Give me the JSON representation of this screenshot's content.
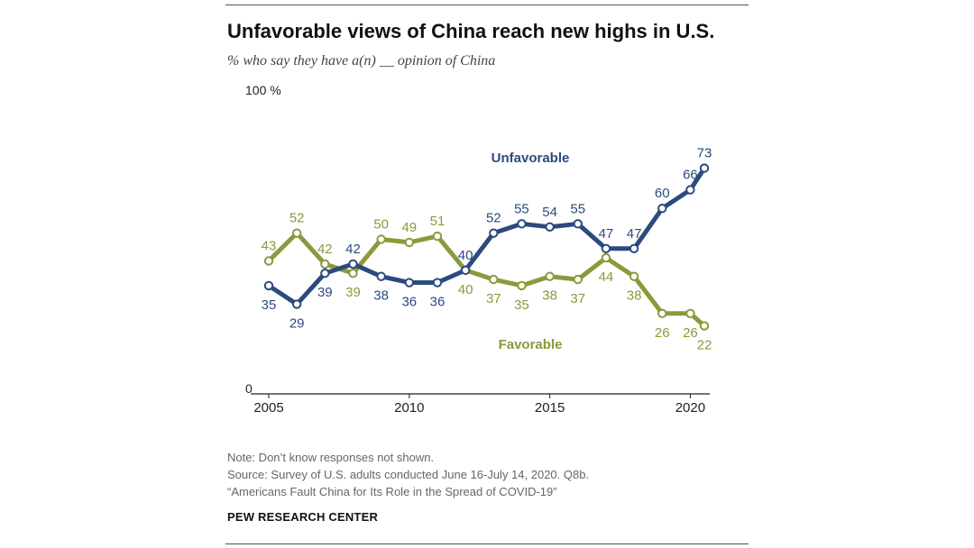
{
  "header": {
    "title": "Unfavorable views of China reach new highs in U.S.",
    "subtitle": "% who say they have a(n) __ opinion of China"
  },
  "footer": {
    "note": "Note: Don’t know responses not shown.",
    "source": "Source: Survey of U.S. adults conducted June 16-July 14, 2020. Q8b.",
    "report": "“Americans Fault China for Its Role in the Spread of COVID-19”",
    "brand": "PEW RESEARCH CENTER"
  },
  "colors": {
    "unfavorable": "#2b4a7e",
    "favorable": "#8a9a3c",
    "axis": "#222222"
  },
  "chart_data": {
    "type": "line",
    "title": "Unfavorable views of China reach new highs in U.S.",
    "ylim": [
      0,
      100
    ],
    "y_ticks": [
      {
        "value": 0,
        "label": "0"
      },
      {
        "value": 100,
        "label": "100 %"
      }
    ],
    "x_ticks": [
      {
        "value": 2005,
        "label": "2005"
      },
      {
        "value": 2010,
        "label": "2010"
      },
      {
        "value": 2015,
        "label": "2015"
      },
      {
        "value": 2020,
        "label": "2020"
      }
    ],
    "xlim": [
      2005,
      2020.5
    ],
    "x": [
      2005,
      2006,
      2007,
      2008,
      2009,
      2010,
      2011,
      2012,
      2013,
      2014,
      2015,
      2016,
      2017,
      2018,
      2019,
      2020,
      2020.5
    ],
    "series": [
      {
        "name": "Unfavorable",
        "values": [
          35,
          29,
          39,
          42,
          38,
          36,
          36,
          40,
          52,
          55,
          54,
          55,
          47,
          47,
          60,
          66,
          73
        ],
        "labels": [
          "35",
          "29",
          "39",
          "42",
          "38",
          "36",
          "36",
          "40",
          "52",
          "55",
          "54",
          "55",
          "47",
          "47",
          "60",
          "66",
          "73"
        ],
        "label_side": [
          "below",
          "below",
          "below",
          "above",
          "below",
          "below",
          "below",
          "above",
          "above",
          "above",
          "above",
          "above",
          "above",
          "above",
          "above",
          "above",
          "above"
        ]
      },
      {
        "name": "Favorable",
        "values": [
          43,
          52,
          42,
          39,
          50,
          49,
          51,
          40,
          37,
          35,
          38,
          37,
          44,
          38,
          26,
          26,
          22
        ],
        "labels": [
          "43",
          "52",
          "42",
          "39",
          "50",
          "49",
          "51",
          "40",
          "37",
          "35",
          "38",
          "37",
          "44",
          "38",
          "26",
          "26",
          "22"
        ],
        "label_side": [
          "above",
          "above",
          "above",
          "below",
          "above",
          "above",
          "above",
          "below",
          "below",
          "below",
          "below",
          "below",
          "below",
          "below",
          "below",
          "below",
          "below"
        ]
      }
    ]
  }
}
